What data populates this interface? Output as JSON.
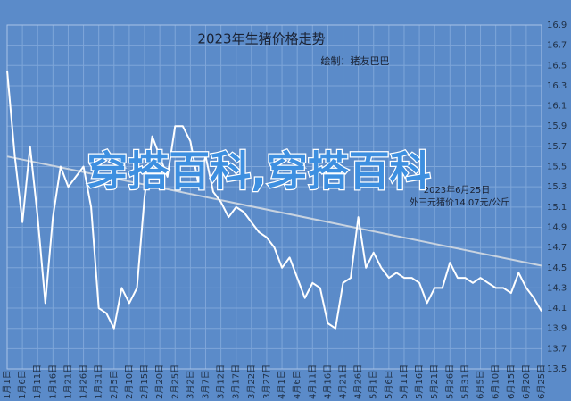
{
  "chart_data": {
    "type": "line",
    "title": "2023年生猪价格走势",
    "subtitle": "绘制：猪友巴巴",
    "annotation": [
      "2023年6月25日",
      "外三元猪价14.07元/公斤"
    ],
    "watermark": "穿搭百科,穿搭百科",
    "categories": [
      "1月1日",
      null,
      "1月6日",
      null,
      "1月11日",
      null,
      "1月16日",
      null,
      "1月21日",
      null,
      "1月26日",
      null,
      "1月31日",
      null,
      "2月5日",
      null,
      "2月10日",
      null,
      "2月15日",
      null,
      "2月20日",
      null,
      "2月25日",
      null,
      "3月2日",
      null,
      "3月7日",
      null,
      "3月12日",
      null,
      "3月17日",
      null,
      "3月22日",
      null,
      "3月27日",
      null,
      "4月1日",
      null,
      "4月6日",
      null,
      "4月11日",
      null,
      "4月16日",
      null,
      "4月21日",
      null,
      "4月26日",
      null,
      "5月1日",
      null,
      "5月6日",
      null,
      "5月11日",
      null,
      "5月16日",
      null,
      "5月21日",
      null,
      "5月26日",
      null,
      "5月31日",
      null,
      "6月5日",
      null,
      "6月10日",
      null,
      "6月15日",
      null,
      "6月20日",
      null,
      "6月25日"
    ],
    "series": [
      {
        "name": "外三元猪价",
        "color": "#ffffff",
        "values": [
          16.45,
          15.6,
          14.95,
          15.7,
          15.0,
          14.15,
          15.0,
          15.5,
          15.3,
          15.4,
          15.5,
          15.1,
          14.1,
          14.05,
          13.9,
          14.3,
          14.15,
          14.3,
          15.2,
          15.8,
          15.6,
          15.4,
          15.9,
          15.9,
          15.75,
          15.35,
          15.6,
          15.25,
          15.15,
          15.0,
          15.1,
          15.05,
          14.95,
          14.85,
          14.8,
          14.7,
          14.5,
          14.6,
          14.4,
          14.2,
          14.35,
          14.3,
          13.95,
          13.9,
          14.35,
          14.4,
          15.0,
          14.5,
          14.65,
          14.5,
          14.4,
          14.45,
          14.4,
          14.4,
          14.35,
          14.15,
          14.3,
          14.3,
          14.55,
          14.4,
          14.4,
          14.35,
          14.4,
          14.35,
          14.3,
          14.3,
          14.25,
          14.45,
          14.3,
          14.2,
          14.07
        ]
      }
    ],
    "trend": {
      "color": "#c8d3e0",
      "values": [
        15.6,
        14.52
      ]
    },
    "ylim": [
      13.5,
      16.9
    ],
    "yticks": [
      13.5,
      13.7,
      13.9,
      14.1,
      14.3,
      14.5,
      14.7,
      14.9,
      15.1,
      15.3,
      15.5,
      15.7,
      15.9,
      16.1,
      16.3,
      16.5,
      16.7,
      16.9
    ],
    "grid": true
  }
}
